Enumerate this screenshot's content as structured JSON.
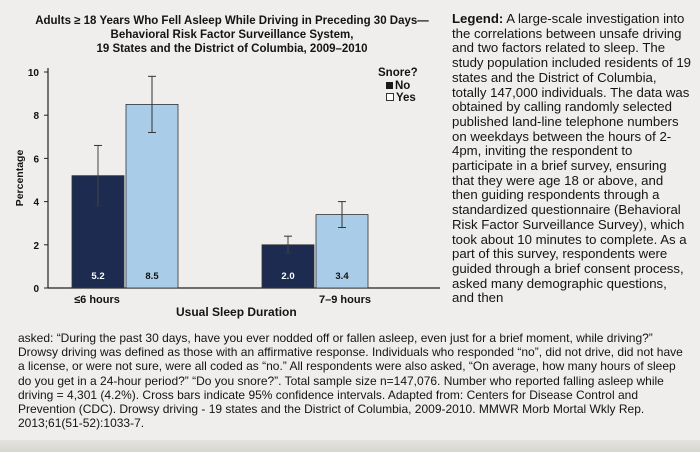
{
  "chart_data": {
    "type": "bar",
    "title_lines": [
      "Adults ≥ 18 Years Who Fell Asleep While Driving in Preceding 30 Days—",
      "Behavioral Risk Factor Surveillance System,",
      "19 States and the District of Columbia, 2009–2010"
    ],
    "xlabel": "Usual Sleep Duration",
    "ylabel": "Percentage",
    "ylim": [
      0,
      10
    ],
    "yticks": [
      "0",
      "2",
      "4",
      "6",
      "8",
      "10"
    ],
    "categories": [
      "≤6 hours",
      "7–9 hours"
    ],
    "legend_title": "Snore?",
    "series": [
      {
        "name": "No",
        "color": "#1c2b4f",
        "values": [
          5.2,
          2.0
        ],
        "ci_low": [
          3.8,
          1.6
        ],
        "ci_high": [
          6.6,
          2.4
        ],
        "labels": [
          "5.2",
          "2.0"
        ]
      },
      {
        "name": "Yes",
        "color": "#a9cde8",
        "values": [
          8.5,
          3.4
        ],
        "ci_low": [
          7.2,
          2.8
        ],
        "ci_high": [
          9.8,
          4.0
        ],
        "labels": [
          "8.5",
          "3.4"
        ]
      }
    ],
    "grid": false,
    "legend_position": "top-right"
  },
  "legend_text": {
    "label": "Legend:",
    "body": " A large-scale investigation into the correlations between unsafe driving and two factors related to sleep. The study population included residents of 19 states and the District of Columbia, totally 147,000 individuals. The data was obtained by calling randomly selected published land-line telephone numbers on weekdays between the hours of 2-4pm, inviting the respondent to participate in a brief survey, ensuring that they were age 18 or above, and then guiding respondents through a standardized questionnaire (Behavioral Risk Factor Surveillance Survey), which took about 10 minutes to complete. As a part of this survey, respondents were guided through a brief consent process, asked many demographic questions, and then"
  },
  "caption": "asked: “During the past 30 days, have you ever nodded off or fallen asleep, even just for a brief moment, while driving?” Drowsy driving was defined as those with an affirmative response. Individuals who responded “no”, did not drive, did not have a license, or were not sure, were all coded as “no.” All respondents were also asked, “On average, how many hours of sleep do you get in a 24-hour period?” “Do you snore?”. Total sample size n=147,076. Number who reported falling asleep while driving = 4,301 (4.2%). Cross bars indicate 95% confidence intervals. Adapted from: Centers for Disease Control and Prevention (CDC). Drowsy driving - 19 states and the District of Columbia, 2009-2010. MMWR Morb Mortal Wkly Rep. 2013;61(51-52):1033-7."
}
